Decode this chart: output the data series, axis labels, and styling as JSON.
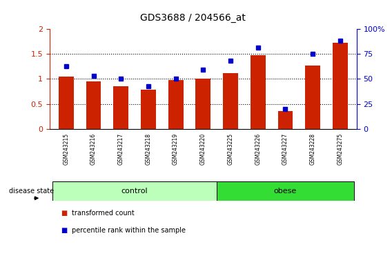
{
  "title": "GDS3688 / 204566_at",
  "samples": [
    "GSM243215",
    "GSM243216",
    "GSM243217",
    "GSM243218",
    "GSM243219",
    "GSM243220",
    "GSM243225",
    "GSM243226",
    "GSM243227",
    "GSM243228",
    "GSM243275"
  ],
  "transformed_count": [
    1.05,
    0.95,
    0.85,
    0.78,
    0.98,
    1.0,
    1.12,
    1.47,
    0.36,
    1.27,
    1.72
  ],
  "percentile_rank": [
    63,
    53,
    50,
    43,
    50,
    59,
    68,
    81,
    20,
    75,
    88
  ],
  "bar_color": "#cc2200",
  "dot_color": "#0000cc",
  "left_ylim": [
    0,
    2
  ],
  "left_yticks": [
    0,
    0.5,
    1.0,
    1.5,
    2.0
  ],
  "left_yticklabels": [
    "0",
    "0.5",
    "1",
    "1.5",
    "2"
  ],
  "right_ylim": [
    0,
    100
  ],
  "right_yticks": [
    0,
    25,
    50,
    75,
    100
  ],
  "right_yticklabels": [
    "0",
    "25",
    "50",
    "75",
    "100%"
  ],
  "left_tick_color": "#cc2200",
  "right_tick_color": "#0000cc",
  "groups": [
    {
      "label": "control",
      "start": 0,
      "end": 5,
      "color": "#bbffbb"
    },
    {
      "label": "obese",
      "start": 6,
      "end": 10,
      "color": "#33dd33"
    }
  ],
  "group_label_prefix": "disease state",
  "legend_items": [
    {
      "label": "transformed count",
      "color": "#cc2200"
    },
    {
      "label": "percentile rank within the sample",
      "color": "#0000cc"
    }
  ],
  "xtick_bg_color": "#cccccc",
  "bar_edge_color": "none",
  "xlim": [
    -0.6,
    10.6
  ],
  "dotgrid_yticks": [
    0.5,
    1.0,
    1.5
  ]
}
